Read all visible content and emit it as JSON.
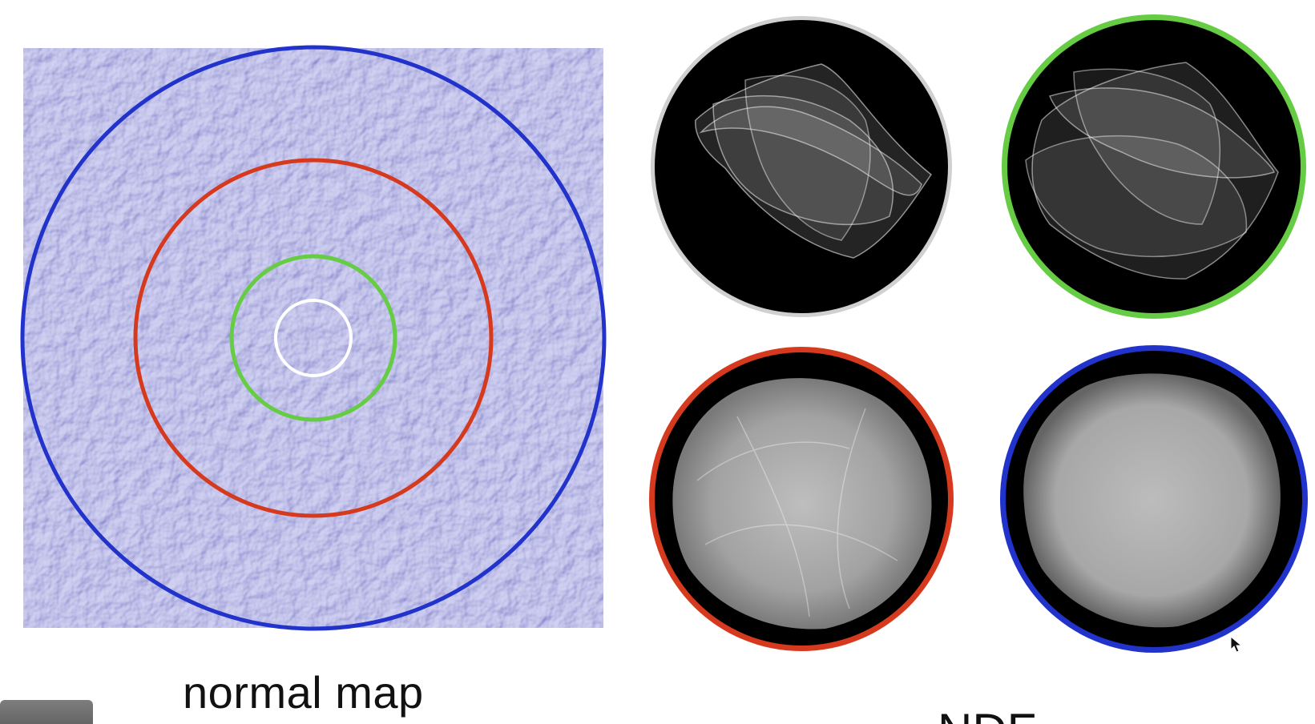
{
  "caption": "normal map",
  "bottom_right_label": "NDF",
  "colors": {
    "normal_map_base": "#8f8fee",
    "ring_blue": "#2233cc",
    "ring_red": "#d63a1e",
    "ring_green": "#66cc44",
    "ring_white": "#ffffff",
    "ndf_background": "#000000",
    "ndf_border_white": "#d0d0d0"
  },
  "icons": {
    "pointer": "mouse-cursor-icon"
  }
}
